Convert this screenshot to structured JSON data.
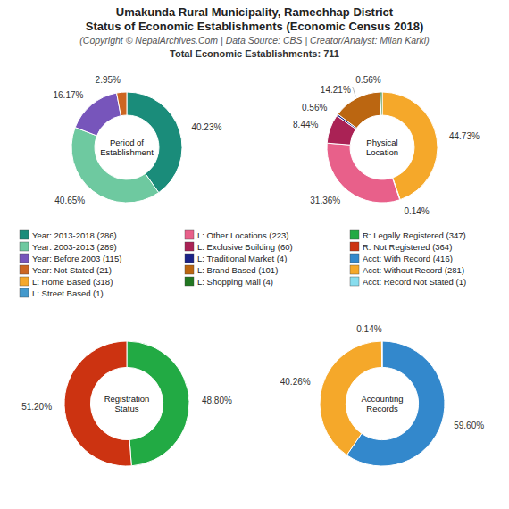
{
  "title": "Umakunda Rural Municipality, Ramechhap District\nStatus of Economic Establishments (Economic Census 2018)",
  "subtitle": "(Copyright © NepalArchives.Com | Data Source: CBS | Creator/Analyst: Milan Karki)",
  "annotations": [
    "Total Economic Establishments: 711"
  ],
  "legend": "center",
  "chart_data": [
    {
      "type": "donut",
      "title": "Period of\nEstablishment",
      "categories": [
        "Year: 2013-2018 (286)",
        "Year: 2003-2013 (289)",
        "Year: Before 2003 (115)",
        "Year: Not Stated (21)"
      ],
      "values": [
        40.23,
        40.65,
        16.17,
        2.95
      ],
      "value_labels": [
        "40.23%",
        "40.65%",
        "16.17%",
        "2.95%"
      ],
      "colors": [
        "#1a8c7a",
        "#6ec9a0",
        "#7755bb",
        "#cc6622"
      ],
      "data_labels": true
    },
    {
      "type": "donut",
      "title": "Physical\nLocation",
      "categories": [
        "L: Home Based (318)",
        "L: Street Based (1)",
        "L: Other Locations (223)",
        "L: Exclusive Building (60)",
        "L: Traditional Market (4)",
        "L: Brand Based (101)",
        "L: Shopping Mall (4)"
      ],
      "values": [
        44.73,
        0.14,
        31.36,
        8.44,
        0.56,
        14.21,
        0.56
      ],
      "value_labels": [
        "44.73%",
        "0.14%",
        "31.36%",
        "8.44%",
        "0.56%",
        "14.21%",
        "0.56%"
      ],
      "colors": [
        "#f5a82a",
        "#4499cc",
        "#e8608a",
        "#aa2255",
        "#1a2288",
        "#bb6611",
        "#227722"
      ],
      "data_labels": true
    },
    {
      "type": "donut",
      "title": "Registration\nStatus",
      "categories": [
        "R: Legally Registered (347)",
        "R: Not Registered (364)"
      ],
      "values": [
        48.8,
        51.2
      ],
      "value_labels": [
        "48.80%",
        "51.20%"
      ],
      "colors": [
        "#22aa44",
        "#cc3311"
      ],
      "data_labels": true
    },
    {
      "type": "donut",
      "title": "Accounting\nRecords",
      "categories": [
        "Acct: With Record (416)",
        "Acct: Without Record (281)",
        "Acct: Record Not Stated (1)"
      ],
      "values": [
        59.6,
        40.26,
        0.14
      ],
      "value_labels": [
        "59.60%",
        "40.26%",
        "0.14%"
      ],
      "colors": [
        "#3388cc",
        "#f5a82a",
        "#88ddee"
      ],
      "data_labels": true
    }
  ]
}
